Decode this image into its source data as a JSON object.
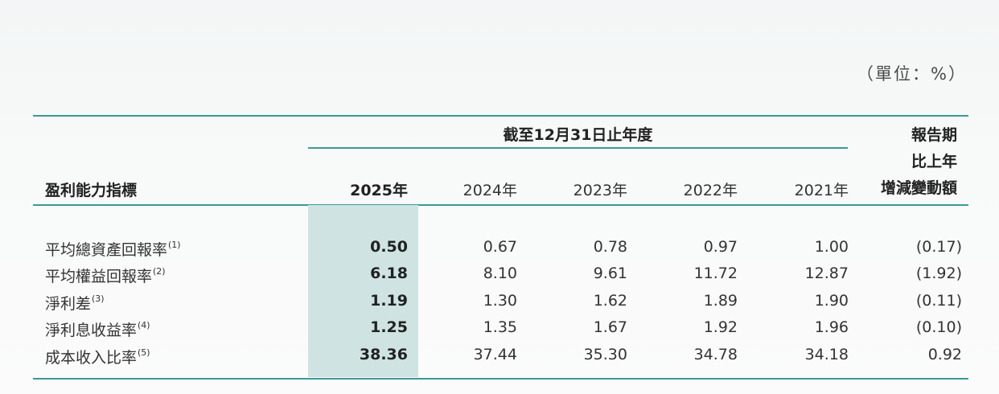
{
  "unit_label": "（單位：%）",
  "header": {
    "period_label": "截至12月31日止年度",
    "metric_label": "盈利能力指標",
    "change_lines": [
      "報告期",
      "比上年",
      "增減變動額"
    ],
    "years": [
      "2025年",
      "2024年",
      "2023年",
      "2022年",
      "2021年"
    ]
  },
  "rows": [
    {
      "label": "平均總資產回報率",
      "note": "(1)",
      "values": [
        "0.50",
        "0.67",
        "0.78",
        "0.97",
        "1.00"
      ],
      "change": "(0.17)"
    },
    {
      "label": "平均權益回報率",
      "note": "(2)",
      "values": [
        "6.18",
        "8.10",
        "9.61",
        "11.72",
        "12.87"
      ],
      "change": "(1.92)"
    },
    {
      "label": "淨利差",
      "note": "(3)",
      "values": [
        "1.19",
        "1.30",
        "1.62",
        "1.89",
        "1.90"
      ],
      "change": "(0.11)"
    },
    {
      "label": "淨利息收益率",
      "note": "(4)",
      "values": [
        "1.25",
        "1.35",
        "1.67",
        "1.92",
        "1.96"
      ],
      "change": "(0.10)"
    },
    {
      "label": "成本收入比率",
      "note": "(5)",
      "values": [
        "38.36",
        "37.44",
        "35.30",
        "34.78",
        "34.18"
      ],
      "change": "0.92"
    }
  ],
  "colors": {
    "rule": "#3a9b93",
    "highlight": "#cfe3e3"
  }
}
